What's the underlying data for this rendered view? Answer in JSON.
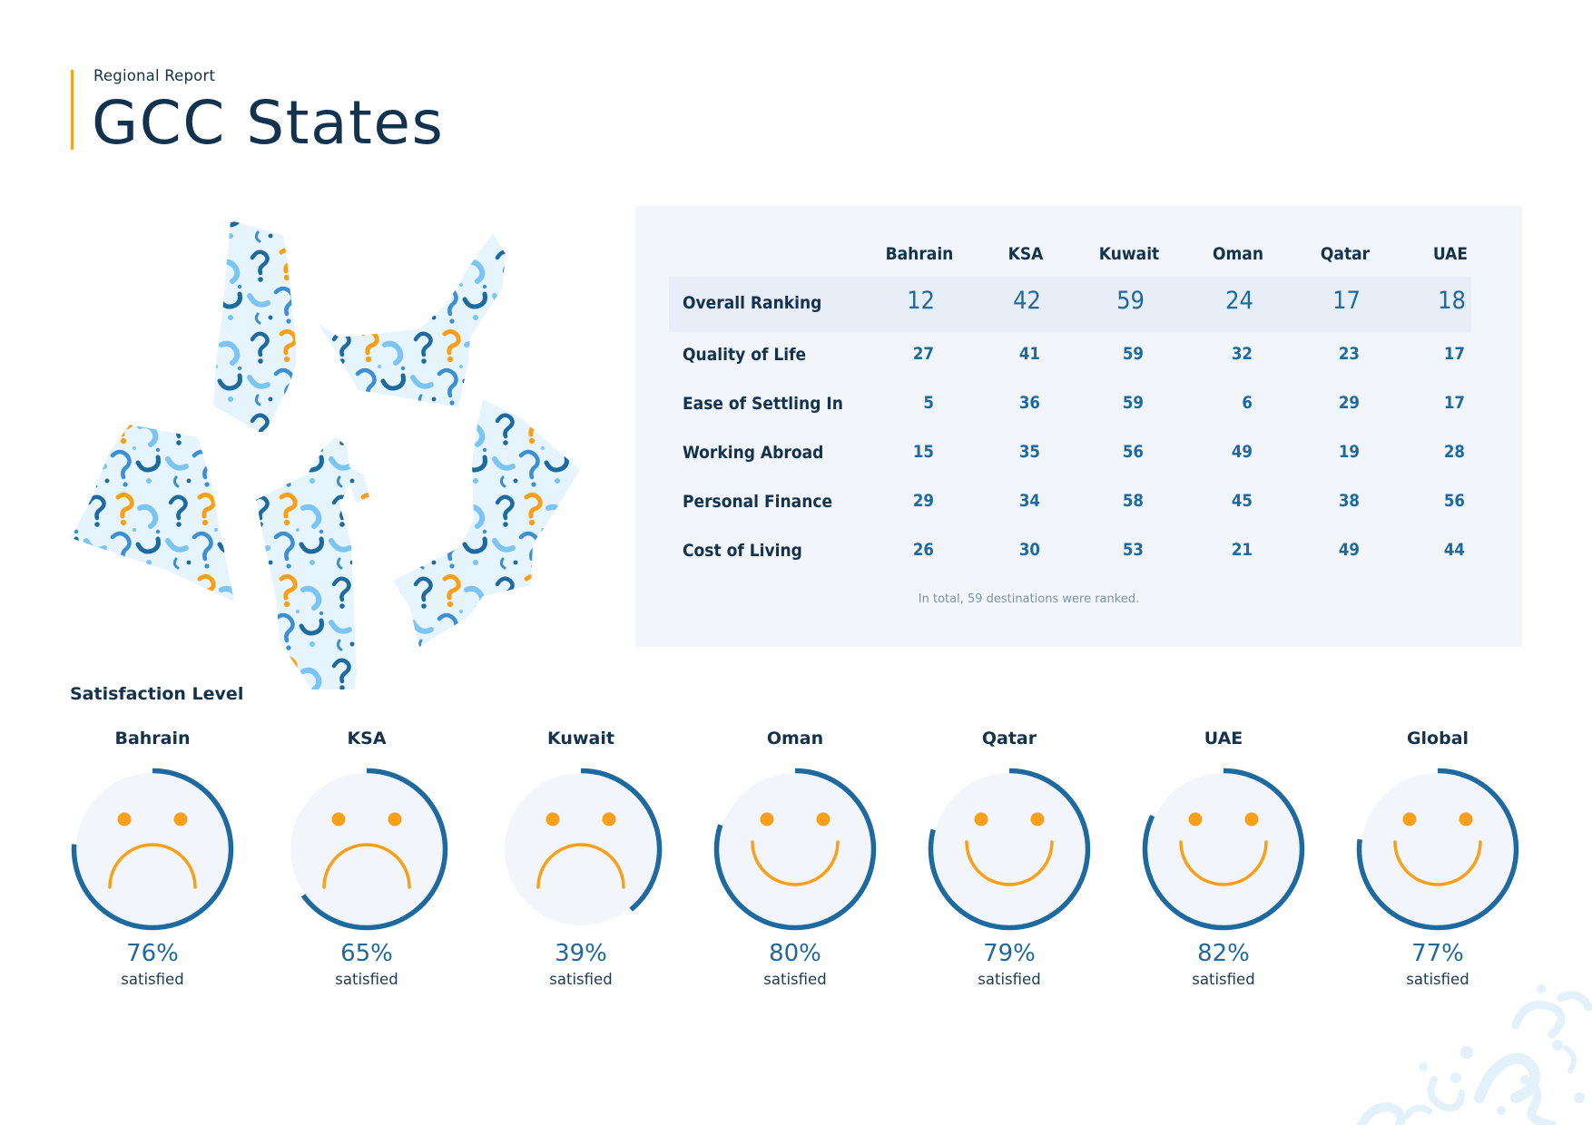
{
  "header": {
    "subtitle": "Regional Report",
    "title": "GCC States"
  },
  "colors": {
    "accent": "#f9a01b",
    "navy": "#12324d",
    "blue": "#1e6a9e",
    "panel": "#f2f6fb",
    "face_fill": "#f2f6fb"
  },
  "ranking_table": {
    "columns": [
      "Bahrain",
      "KSA",
      "Kuwait",
      "Oman",
      "Qatar",
      "UAE"
    ],
    "rows": [
      {
        "label": "Overall Ranking",
        "values": [
          "12",
          "42",
          "59",
          "24",
          "17",
          "18"
        ],
        "highlight": true
      },
      {
        "label": "Quality of Life",
        "values": [
          "27",
          "41",
          "59",
          "32",
          "23",
          "17"
        ]
      },
      {
        "label": "Ease of Settling In",
        "values": [
          "5",
          "36",
          "59",
          "6",
          "29",
          "17"
        ]
      },
      {
        "label": "Working Abroad",
        "values": [
          "15",
          "35",
          "56",
          "49",
          "19",
          "28"
        ]
      },
      {
        "label": "Personal Finance",
        "values": [
          "29",
          "34",
          "58",
          "45",
          "38",
          "56"
        ]
      },
      {
        "label": "Cost of Living",
        "values": [
          "26",
          "30",
          "53",
          "21",
          "49",
          "44"
        ]
      }
    ],
    "note": "In total, 59 destinations were ranked."
  },
  "satisfaction": {
    "title": "Satisfaction Level",
    "items": [
      {
        "name": "Bahrain",
        "percent": 76,
        "percent_label": "76%",
        "caption": "satisfied",
        "mood": "sad"
      },
      {
        "name": "KSA",
        "percent": 65,
        "percent_label": "65%",
        "caption": "satisfied",
        "mood": "sad"
      },
      {
        "name": "Kuwait",
        "percent": 39,
        "percent_label": "39%",
        "caption": "satisfied",
        "mood": "sad"
      },
      {
        "name": "Oman",
        "percent": 80,
        "percent_label": "80%",
        "caption": "satisfied",
        "mood": "happy"
      },
      {
        "name": "Qatar",
        "percent": 79,
        "percent_label": "79%",
        "caption": "satisfied",
        "mood": "happy"
      },
      {
        "name": "UAE",
        "percent": 82,
        "percent_label": "82%",
        "caption": "satisfied",
        "mood": "happy"
      },
      {
        "name": "Global",
        "percent": 77,
        "percent_label": "77%",
        "caption": "satisfied",
        "mood": "happy"
      }
    ]
  }
}
